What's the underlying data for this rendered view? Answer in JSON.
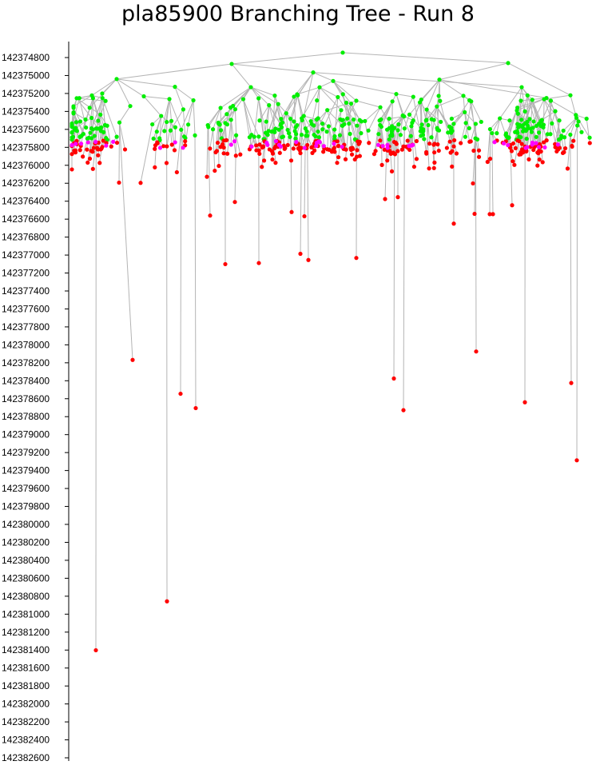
{
  "chart_data": {
    "type": "scatter",
    "title": "pla85900 Branching Tree - Run 8",
    "ylabel": "",
    "xlabel": "",
    "y_inverted": true,
    "ylim": [
      142374800,
      142382600
    ],
    "yticks": [
      142374800,
      142375000,
      142375200,
      142375400,
      142375600,
      142375800,
      142376000,
      142376200,
      142376400,
      142376600,
      142376800,
      142377000,
      142377200,
      142377400,
      142377600,
      142377800,
      142378000,
      142378200,
      142378400,
      142378600,
      142378800,
      142379000,
      142379200,
      142379400,
      142379600,
      142379800,
      142380000,
      142380200,
      142380400,
      142380600,
      142380800,
      142381000,
      142381200,
      142381400,
      142381600,
      142381800,
      142382000,
      142382200,
      142382400,
      142382600
    ],
    "colors": {
      "branch": "#00ee00",
      "leaf": "#ff0000",
      "incumbent": "#ff00ff",
      "edge": "#b4b4b4",
      "axis": "#000000"
    },
    "series": [
      {
        "name": "",
        "color": "#00ee00",
        "node_kind": "branch",
        "values": []
      },
      {
        "name": "",
        "color": "#ff0000",
        "node_kind": "leaf",
        "values": []
      },
      {
        "name": "",
        "color": "#ff00ff",
        "node_kind": "incumbent",
        "values": []
      }
    ],
    "outlier_leaves": [
      {
        "x": 120,
        "y": 142381402
      },
      {
        "x": 209,
        "y": 142380857
      },
      {
        "x": 166,
        "y": 142378168
      },
      {
        "x": 226,
        "y": 142378545
      },
      {
        "x": 245,
        "y": 142378705
      },
      {
        "x": 493,
        "y": 142378375
      },
      {
        "x": 505,
        "y": 142378728
      },
      {
        "x": 596,
        "y": 142378074
      },
      {
        "x": 657,
        "y": 142378640
      },
      {
        "x": 715,
        "y": 142378425
      },
      {
        "x": 722,
        "y": 142379286
      },
      {
        "x": 282,
        "y": 142377101
      },
      {
        "x": 324,
        "y": 142377089
      },
      {
        "x": 376,
        "y": 142376986
      },
      {
        "x": 386,
        "y": 142377055
      },
      {
        "x": 446,
        "y": 142377032
      },
      {
        "x": 263,
        "y": 142376560
      },
      {
        "x": 294,
        "y": 142376409
      },
      {
        "x": 365,
        "y": 142376521
      },
      {
        "x": 381,
        "y": 142376568
      },
      {
        "x": 482,
        "y": 142376376
      },
      {
        "x": 498,
        "y": 142376355
      },
      {
        "x": 568,
        "y": 142376650
      },
      {
        "x": 594,
        "y": 142376541
      },
      {
        "x": 613,
        "y": 142376544
      },
      {
        "x": 617,
        "y": 142376544
      },
      {
        "x": 641,
        "y": 142376445
      },
      {
        "x": 149,
        "y": 142376193
      },
      {
        "x": 176,
        "y": 142376196
      },
      {
        "x": 259,
        "y": 142376128
      },
      {
        "x": 592,
        "y": 142376202
      }
    ],
    "hub_nodes": [
      {
        "x": 429,
        "y": 142374745
      },
      {
        "x": 290,
        "y": 142374871
      },
      {
        "x": 636,
        "y": 142374861
      },
      {
        "x": 146,
        "y": 142375039
      },
      {
        "x": 392,
        "y": 142374966
      },
      {
        "x": 550,
        "y": 142375046
      },
      {
        "x": 417,
        "y": 142375061
      },
      {
        "x": 219,
        "y": 142375126
      },
      {
        "x": 314,
        "y": 142375130
      },
      {
        "x": 653,
        "y": 142375130
      },
      {
        "x": 115,
        "y": 142375222
      },
      {
        "x": 180,
        "y": 142375232
      },
      {
        "x": 400,
        "y": 142375131
      },
      {
        "x": 496,
        "y": 142375206
      },
      {
        "x": 714,
        "y": 142375220
      },
      {
        "x": 96,
        "y": 142375253
      },
      {
        "x": 446,
        "y": 142375281
      },
      {
        "x": 580,
        "y": 142375226
      },
      {
        "x": 684,
        "y": 142375251
      }
    ]
  }
}
